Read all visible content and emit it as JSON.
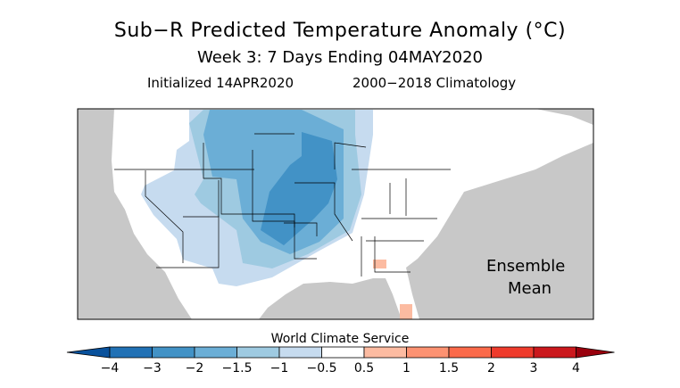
{
  "header": {
    "title": "Sub−R Predicted Temperature Anomaly (°C)",
    "subtitle": "Week 3: 7 Days Ending 04MAY2020",
    "initialized": "Initialized 14APR2020",
    "climatology": "2000−2018 Climatology"
  },
  "map": {
    "region": "Contiguous United States",
    "annotation_line1": "Ensemble",
    "annotation_line2": "Mean",
    "colors": {
      "ocean": "#c8c8c8",
      "land": "#ffffff"
    },
    "anomaly_areas": [
      {
        "area": "West and central US (Great Basin, Southwest, Rockies, Plains, Upper Midwest)",
        "bin": "-1 to -0.5"
      },
      {
        "area": "Northern Rockies, Plains, Upper Midwest",
        "bin": "-1.5 to -1"
      },
      {
        "area": "Northern and central Plains, Upper Mississippi Valley",
        "bin": "-2 to -1.5"
      },
      {
        "area": "Kansas, Nebraska, Iowa, Minnesota, Oklahoma panhandle",
        "bin": "-3 to -2"
      },
      {
        "area": "Southern Georgia",
        "bin": "0.5 to 1"
      },
      {
        "area": "Southern Florida",
        "bin": "0.5 to 1"
      }
    ]
  },
  "colorbar": {
    "credit": "World Climate Service",
    "ticks": [
      "−4",
      "−3",
      "−2",
      "−1.5",
      "−1",
      "−0.5",
      "0.5",
      "1",
      "1.5",
      "2",
      "3",
      "4"
    ],
    "colors": [
      "#08519c",
      "#2171b5",
      "#4292c6",
      "#6baed6",
      "#9ecae1",
      "#c6dbef",
      "#ffffff",
      "#fcbba1",
      "#fc9272",
      "#fb6a4a",
      "#ef3b2c",
      "#cb181d",
      "#99000d"
    ]
  }
}
